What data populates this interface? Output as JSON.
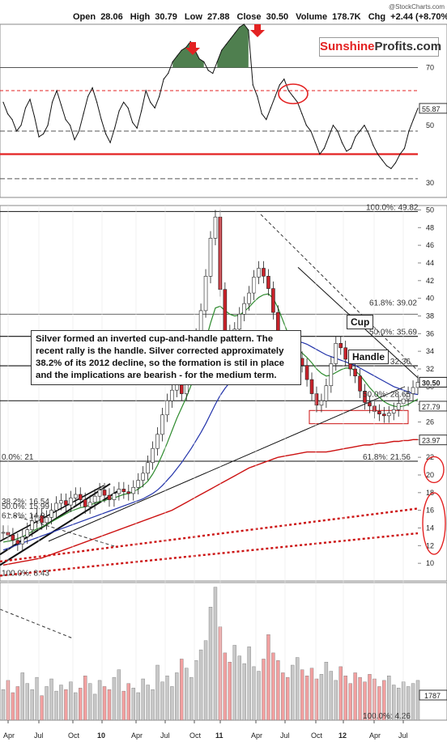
{
  "header": {
    "copyright": "@StockCharts.com",
    "open_label": "Open",
    "open": "28.06",
    "high_label": "High",
    "high": "30.79",
    "low_label": "Low",
    "low": "27.88",
    "close_label": "Close",
    "close": "30.50",
    "volume_label": "Volume",
    "volume": "178.7K",
    "chg_label": "Chg",
    "chg": "+2.44 (+8.70%)"
  },
  "brand": {
    "part1": "Sunshine",
    "part2": "Profits.com"
  },
  "annotation": {
    "text": "Silver formed an inverted cup-and-handle pattern. The recent rally is the handle. Silver corrected approximately 38.2% of its 2012 decline, so the formation is stil in place and the implications are bearish - for the medium term.",
    "cup": "Cup",
    "handle": "Handle"
  },
  "colors": {
    "accent_red": "#e32222",
    "rsi_fill": "#4f7f4f",
    "ma_green": "#2e8b2e",
    "ma_blue": "#2233aa",
    "ma_red": "#cc1111",
    "volume_bar": "#c8c8c8",
    "volume_bar_red": "#f2a0a0"
  },
  "chart_data": [
    {
      "type": "line",
      "name": "RSI",
      "y_ticks": [
        30,
        50,
        70
      ],
      "last_value_label": "55.87",
      "ylim": [
        25,
        85
      ],
      "reference_lines": [
        70,
        62,
        48,
        40,
        31.5
      ],
      "values": [
        58,
        54,
        52,
        48,
        50,
        56,
        59,
        53,
        46,
        47,
        50,
        58,
        62,
        57,
        52,
        50,
        45,
        48,
        54,
        60,
        63,
        58,
        52,
        47,
        44,
        49,
        55,
        58,
        56,
        51,
        49,
        55,
        62,
        58,
        56,
        60,
        66,
        68,
        72,
        74,
        76,
        77,
        79,
        76,
        73,
        72,
        69,
        68,
        72,
        76,
        78,
        80,
        82,
        84,
        85,
        83,
        64,
        60,
        54,
        52,
        56,
        60,
        64,
        66,
        62,
        60,
        58,
        54,
        50,
        48,
        44,
        40,
        42,
        46,
        50,
        48,
        44,
        41,
        42,
        46,
        48,
        50,
        47,
        43,
        40,
        38,
        36,
        35,
        37,
        40,
        42,
        48,
        52,
        55.87
      ]
    },
    {
      "type": "line",
      "name": "Price",
      "x_ticks": [
        "Apr",
        "Jul",
        "Oct",
        "10",
        "Apr",
        "Jul",
        "Oct",
        "11",
        "Apr",
        "Jul",
        "Oct",
        "12",
        "Apr",
        "Jul"
      ],
      "y_ticks": [
        10,
        12,
        14,
        16,
        18,
        20,
        22,
        24,
        26,
        28,
        30,
        32,
        34,
        36,
        38,
        40,
        42,
        44,
        46,
        48,
        50
      ],
      "ylim": [
        8,
        50.5
      ],
      "last_value_labels": [
        "30.50",
        "27.79",
        "23.97"
      ],
      "fib_labels": [
        "100.0%: 49.82",
        "61.8%: 39.02",
        "50.0%: 35.69",
        "38.2%: 32.36",
        "50.0%: 28.65",
        "61.8%: 21.56",
        "0.0%: 21",
        "38.2%: 16.54",
        "50.0%: 15.99",
        "61.8%: 14.9",
        "100.0%: 8.43"
      ],
      "values": [
        13.5,
        13.2,
        12.6,
        12.2,
        13.0,
        13.8,
        14.8,
        15.4,
        14.6,
        15.2,
        16.0,
        16.8,
        17.1,
        16.6,
        17.4,
        17.8,
        17.2,
        16.4,
        16.9,
        17.6,
        18.3,
        17.7,
        17.2,
        17.9,
        18.4,
        18.1,
        17.9,
        18.6,
        19.4,
        20.2,
        21.4,
        23.0,
        24.6,
        26.8,
        28.4,
        29.6,
        30.8,
        29.2,
        31.4,
        33.6,
        35.8,
        38.6,
        42.5,
        46.8,
        49.2,
        41.0,
        36.2,
        34.8,
        36.5,
        38.2,
        39.4,
        40.6,
        42.4,
        43.4,
        42.5,
        41.1,
        38.4,
        34.6,
        31.8,
        31.0,
        31.9,
        33.2,
        32.4,
        30.8,
        29.2,
        27.9,
        28.4,
        30.1,
        32.6,
        34.9,
        34.4,
        33.1,
        32.0,
        31.2,
        29.5,
        28.2,
        27.8,
        27.2,
        26.9,
        26.7,
        27.0,
        27.4,
        28.1,
        28.6,
        29.2,
        29.9,
        30.5
      ],
      "ma_green": [
        12.4,
        12.5,
        12.6,
        12.8,
        13.0,
        13.3,
        13.6,
        13.9,
        14.1,
        14.4,
        14.7,
        15.0,
        15.3,
        15.6,
        15.9,
        16.1,
        16.3,
        16.4,
        16.6,
        16.8,
        17.0,
        17.1,
        17.3,
        17.4,
        17.6,
        17.8,
        17.9,
        18.1,
        18.4,
        18.8,
        19.3,
        20.1,
        21.1,
        22.3,
        23.6,
        25.0,
        26.4,
        27.6,
        28.8,
        30.2,
        31.6,
        33.4,
        35.2,
        37.2,
        38.9,
        39.1,
        38.6,
        38.2,
        38.0,
        38.1,
        38.5,
        39.0,
        39.6,
        40.1,
        40.4,
        40.5,
        40.0,
        38.9,
        37.5,
        36.1,
        35.0,
        34.3,
        33.8,
        33.3,
        32.7,
        32.0,
        31.5,
        31.2,
        31.3,
        31.6,
        31.9,
        32.1,
        32.1,
        31.8,
        31.3,
        30.6,
        29.9,
        29.3,
        28.8,
        28.3,
        28.0,
        27.8,
        27.7,
        27.8,
        28.0,
        28.3,
        28.6
      ],
      "ma_blue": [
        11.5,
        11.7,
        11.9,
        12.1,
        12.3,
        12.5,
        12.7,
        12.9,
        13.1,
        13.3,
        13.5,
        13.7,
        13.9,
        14.1,
        14.3,
        14.5,
        14.7,
        14.9,
        15.1,
        15.3,
        15.5,
        15.7,
        15.9,
        16.1,
        16.3,
        16.5,
        16.7,
        16.9,
        17.1,
        17.3,
        17.6,
        17.9,
        18.3,
        18.8,
        19.4,
        20.0,
        20.7,
        21.4,
        22.2,
        23.0,
        23.9,
        24.8,
        25.8,
        26.9,
        28.0,
        29.0,
        29.8,
        30.5,
        31.1,
        31.7,
        32.3,
        32.9,
        33.5,
        34.1,
        34.6,
        35.0,
        35.3,
        35.4,
        35.4,
        35.3,
        35.2,
        35.1,
        35.0,
        34.8,
        34.5,
        34.2,
        33.9,
        33.6,
        33.4,
        33.2,
        33.0,
        32.8,
        32.6,
        32.4,
        32.1,
        31.8,
        31.5,
        31.2,
        30.9,
        30.6,
        30.3,
        30.0,
        29.8,
        29.6,
        29.4,
        29.2,
        29.1
      ],
      "ma_red": [
        9.8,
        9.9,
        10.0,
        10.1,
        10.2,
        10.3,
        10.4,
        10.5,
        10.6,
        10.8,
        11.0,
        11.2,
        11.4,
        11.6,
        11.8,
        12.0,
        12.2,
        12.4,
        12.6,
        12.8,
        13.0,
        13.2,
        13.4,
        13.6,
        13.8,
        14.0,
        14.2,
        14.4,
        14.6,
        14.8,
        15.0,
        15.2,
        15.4,
        15.6,
        15.8,
        16.0,
        16.3,
        16.6,
        16.9,
        17.2,
        17.5,
        17.8,
        18.1,
        18.4,
        18.7,
        19.0,
        19.3,
        19.6,
        19.9,
        20.2,
        20.5,
        20.8,
        21.0,
        21.2,
        21.4,
        21.6,
        21.8,
        22.0,
        22.1,
        22.2,
        22.3,
        22.4,
        22.5,
        22.6,
        22.6,
        22.6,
        22.6,
        22.6,
        22.7,
        22.8,
        22.9,
        23.0,
        23.1,
        23.2,
        23.3,
        23.4,
        23.4,
        23.5,
        23.6,
        23.6,
        23.7,
        23.8,
        23.8,
        23.9,
        23.9,
        24.0,
        24.0
      ]
    },
    {
      "type": "bar",
      "name": "Volume",
      "last_value_label": "1787",
      "fib_label": "100.0%: 4.26",
      "values": [
        2.0,
        2.6,
        1.8,
        2.2,
        3.1,
        2.4,
        2.0,
        2.8,
        1.6,
        2.2,
        2.7,
        1.9,
        2.3,
        2.0,
        2.5,
        1.8,
        2.1,
        2.9,
        2.4,
        1.7,
        2.6,
        2.2,
        2.0,
        2.8,
        3.3,
        1.9,
        2.4,
        2.1,
        1.8,
        2.7,
        2.3,
        2.0,
        3.6,
        2.5,
        2.9,
        2.2,
        3.1,
        4.0,
        3.4,
        2.8,
        3.9,
        4.6,
        5.2,
        7.4,
        8.7,
        6.1,
        4.4,
        3.8,
        4.9,
        4.2,
        3.7,
        4.8,
        3.5,
        3.2,
        4.0,
        5.6,
        4.4,
        3.9,
        3.1,
        2.8,
        3.6,
        4.1,
        3.3,
        2.9,
        3.4,
        2.7,
        3.0,
        3.8,
        3.2,
        2.6,
        3.5,
        2.9,
        2.4,
        3.1,
        2.8,
        2.5,
        3.0,
        2.7,
        2.2,
        2.6,
        2.9,
        2.3,
        2.1,
        2.5,
        2.2,
        2.4,
        2.6
      ]
    }
  ]
}
